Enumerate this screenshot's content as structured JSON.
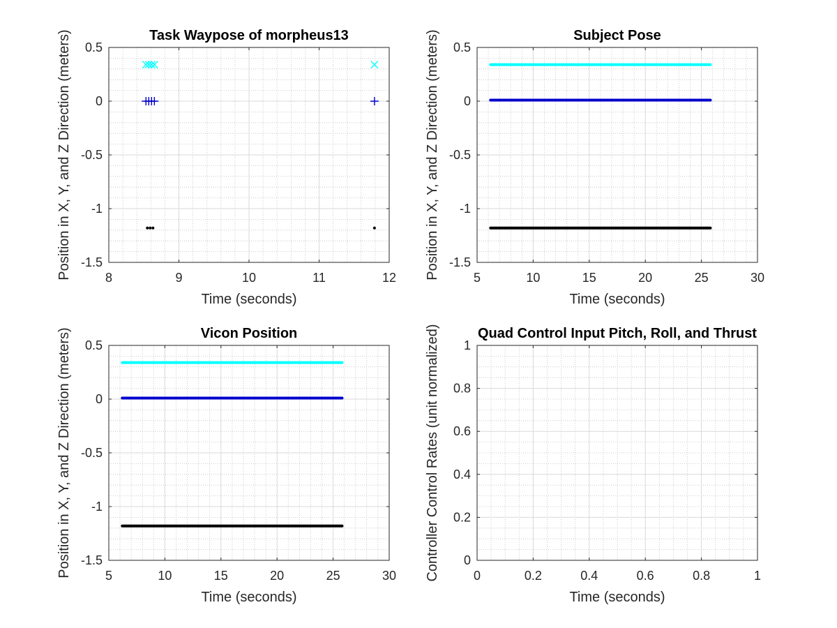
{
  "figure": {
    "background": "#ffffff"
  },
  "colors": {
    "cyan_series": "#00ffff",
    "blue_series": "#0000cd",
    "black_series": "#000000",
    "axis": "#262626",
    "major_grid": "#d9d9d9",
    "minor_grid": "#bfbfbf"
  },
  "chart_data": [
    {
      "id": "waypose",
      "type": "scatter",
      "title": "Task Waypose of morpheus13",
      "xlabel": "Time (seconds)",
      "ylabel": "Position in X, Y, and Z Direction (meters)",
      "xlim": [
        8,
        12
      ],
      "ylim": [
        -1.5,
        0.5
      ],
      "xticks": [
        8,
        9,
        10,
        11,
        12
      ],
      "xtick_labels": [
        "8",
        "9",
        "10",
        "11",
        "12"
      ],
      "yticks": [
        -1.5,
        -1,
        -0.5,
        0,
        0.5
      ],
      "ytick_labels": [
        "-1.5",
        "-1",
        "-0.5",
        "0",
        "0.5"
      ],
      "xminor": 0.2,
      "yminor": 0.1,
      "grid": true,
      "minor_grid": true,
      "series": [
        {
          "marker": "x",
          "color": "#00ffff",
          "x": [
            8.53,
            8.57,
            8.61,
            8.65,
            11.79
          ],
          "y": [
            0.34,
            0.34,
            0.34,
            0.34,
            0.34
          ]
        },
        {
          "marker": "+",
          "color": "#0000cd",
          "x": [
            8.53,
            8.57,
            8.61,
            8.65,
            11.79
          ],
          "y": [
            0.0,
            0.0,
            0.0,
            0.0,
            0.0
          ]
        },
        {
          "marker": "dot",
          "color": "#000000",
          "x": [
            8.55,
            8.59,
            8.63,
            11.79
          ],
          "y": [
            -1.18,
            -1.18,
            -1.18,
            -1.18
          ]
        }
      ]
    },
    {
      "id": "subject-pose",
      "type": "line",
      "title": "Subject Pose",
      "xlabel": "Time (seconds)",
      "ylabel": "Position in X, Y, and Z Direction (meters)",
      "xlim": [
        5,
        30
      ],
      "ylim": [
        -1.5,
        0.5
      ],
      "xticks": [
        5,
        10,
        15,
        20,
        25,
        30
      ],
      "xtick_labels": [
        "5",
        "10",
        "15",
        "20",
        "25",
        "30"
      ],
      "yticks": [
        -1.5,
        -1,
        -0.5,
        0,
        0.5
      ],
      "ytick_labels": [
        "-1.5",
        "-1",
        "-0.5",
        "0",
        "0.5"
      ],
      "xminor": 1,
      "yminor": 0.1,
      "grid": true,
      "minor_grid": true,
      "series": [
        {
          "color": "#00ffff",
          "x": [
            6.2,
            25.8
          ],
          "y": [
            0.34,
            0.34
          ]
        },
        {
          "color": "#0000cd",
          "x": [
            6.2,
            25.8
          ],
          "y": [
            0.01,
            0.01
          ]
        },
        {
          "color": "#000000",
          "x": [
            6.2,
            25.8
          ],
          "y": [
            -1.18,
            -1.18
          ]
        }
      ]
    },
    {
      "id": "vicon-position",
      "type": "line",
      "title": "Vicon Position",
      "xlabel": "Time (seconds)",
      "ylabel": "Position in X, Y, and Z Direction (meters)",
      "xlim": [
        5,
        30
      ],
      "ylim": [
        -1.5,
        0.5
      ],
      "xticks": [
        5,
        10,
        15,
        20,
        25,
        30
      ],
      "xtick_labels": [
        "5",
        "10",
        "15",
        "20",
        "25",
        "30"
      ],
      "yticks": [
        -1.5,
        -1,
        -0.5,
        0,
        0.5
      ],
      "ytick_labels": [
        "-1.5",
        "-1",
        "-0.5",
        "0",
        "0.5"
      ],
      "xminor": 1,
      "yminor": 0.1,
      "grid": true,
      "minor_grid": true,
      "series": [
        {
          "color": "#00ffff",
          "x": [
            6.2,
            25.8
          ],
          "y": [
            0.34,
            0.34
          ]
        },
        {
          "color": "#0000cd",
          "x": [
            6.2,
            25.8
          ],
          "y": [
            0.01,
            0.01
          ]
        },
        {
          "color": "#000000",
          "x": [
            6.2,
            25.8
          ],
          "y": [
            -1.18,
            -1.18
          ]
        }
      ]
    },
    {
      "id": "quad-control",
      "type": "line",
      "title": "Quad Control Input Pitch, Roll, and Thrust",
      "xlabel": "Time (seconds)",
      "ylabel": "Controller Control Rates (unit normalized)",
      "xlim": [
        0,
        1
      ],
      "ylim": [
        0,
        1
      ],
      "xticks": [
        0,
        0.2,
        0.4,
        0.6,
        0.8,
        1
      ],
      "xtick_labels": [
        "0",
        "0.2",
        "0.4",
        "0.6",
        "0.8",
        "1"
      ],
      "yticks": [
        0,
        0.2,
        0.4,
        0.6,
        0.8,
        1
      ],
      "ytick_labels": [
        "0",
        "0.2",
        "0.4",
        "0.6",
        "0.8",
        "1"
      ],
      "xminor": 0.05,
      "yminor": 0.05,
      "grid": true,
      "minor_grid": true,
      "series": []
    }
  ]
}
